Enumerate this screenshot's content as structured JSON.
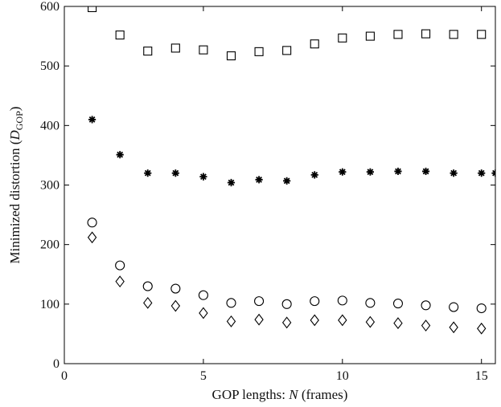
{
  "chart_data": {
    "type": "scatter",
    "title": "",
    "xlabel": "GOP lengths: N (frames)",
    "ylabel": "Minimized distortion (DGOP)",
    "xlim": [
      0,
      15.5
    ],
    "ylim": [
      0,
      600
    ],
    "xticks": [
      0,
      5,
      10,
      15
    ],
    "yticks": [
      0,
      100,
      200,
      300,
      400,
      500,
      600
    ],
    "xtick_labels": [
      "0",
      "5",
      "10",
      "15"
    ],
    "ytick_labels": [
      "0",
      "100",
      "200",
      "300",
      "400",
      "500",
      "600"
    ],
    "grid": false,
    "legend": "none",
    "series": [
      {
        "marker": "square",
        "x": [
          1,
          2,
          3,
          4,
          5,
          6,
          7,
          8,
          9,
          10,
          11,
          12,
          13,
          14,
          15
        ],
        "y": [
          598,
          552,
          525,
          530,
          527,
          517,
          524,
          526,
          537,
          547,
          550,
          553,
          554,
          553,
          553
        ]
      },
      {
        "marker": "star",
        "x": [
          1,
          2,
          3,
          4,
          5,
          6,
          7,
          8,
          9,
          10,
          11,
          12,
          13,
          14,
          15,
          15.5
        ],
        "y": [
          410,
          351,
          320,
          320,
          314,
          304,
          309,
          307,
          317,
          322,
          322,
          323,
          323,
          320,
          320,
          320
        ]
      },
      {
        "marker": "circle",
        "x": [
          1,
          2,
          3,
          4,
          5,
          6,
          7,
          8,
          9,
          10,
          11,
          12,
          13,
          14,
          15
        ],
        "y": [
          237,
          165,
          130,
          126,
          115,
          102,
          105,
          100,
          105,
          106,
          102,
          101,
          98,
          95,
          93
        ]
      },
      {
        "marker": "diamond",
        "x": [
          1,
          2,
          3,
          4,
          5,
          6,
          7,
          8,
          9,
          10,
          11,
          12,
          13,
          14,
          15
        ],
        "y": [
          212,
          138,
          102,
          97,
          85,
          71,
          74,
          69,
          73,
          73,
          70,
          68,
          64,
          61,
          59
        ]
      }
    ]
  }
}
